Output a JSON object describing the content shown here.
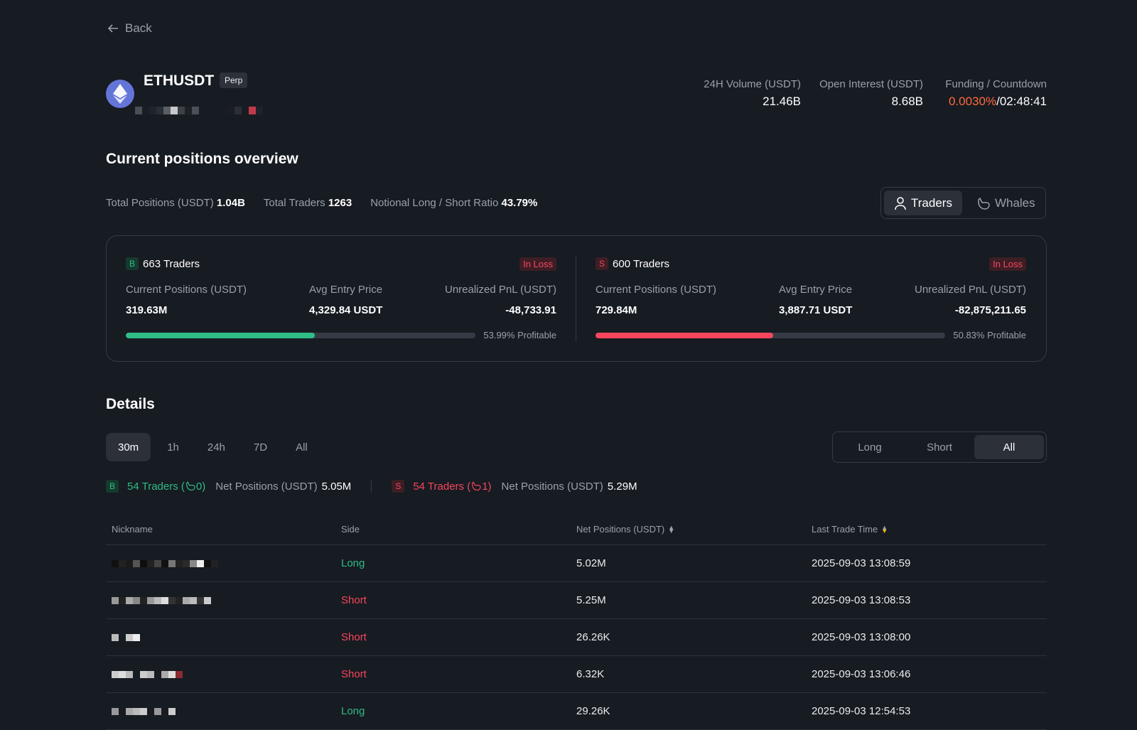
{
  "nav": {
    "back_label": "Back"
  },
  "header": {
    "symbol": "ETHUSDT",
    "badge": "Perp",
    "coin_icon": "ethereum-icon",
    "stats": [
      {
        "label": "24H Volume (USDT)",
        "value": "21.46B"
      },
      {
        "label": "Open Interest (USDT)",
        "value": "8.68B"
      },
      {
        "label": "Funding / Countdown",
        "funding": "0.0030%",
        "sep": "/",
        "countdown": "02:48:41"
      }
    ]
  },
  "overview": {
    "title": "Current positions overview",
    "summary": [
      {
        "label": "Total Positions (USDT)",
        "value": "1.04B"
      },
      {
        "label": "Total Traders",
        "value": "1263"
      },
      {
        "label": "Notional Long / Short Ratio",
        "value": "43.79%"
      }
    ],
    "toggle": [
      {
        "label": "Traders",
        "icon": "person-icon",
        "active": true
      },
      {
        "label": "Whales",
        "icon": "whale-icon",
        "active": false
      }
    ],
    "long": {
      "badge": "B",
      "traders": "663 Traders",
      "status": "In Loss",
      "cols": [
        {
          "label": "Current Positions (USDT)",
          "value": "319.63M"
        },
        {
          "label": "Avg Entry Price",
          "value": "4,329.84 USDT"
        },
        {
          "label": "Unrealized PnL (USDT)",
          "value": "-48,733.91"
        }
      ],
      "profitable_pct": 53.99,
      "profitable_text": "53.99% Profitable",
      "color": "#2ebd85"
    },
    "short": {
      "badge": "S",
      "traders": "600 Traders",
      "status": "In Loss",
      "cols": [
        {
          "label": "Current Positions (USDT)",
          "value": "729.84M"
        },
        {
          "label": "Avg Entry Price",
          "value": "3,887.71 USDT"
        },
        {
          "label": "Unrealized PnL (USDT)",
          "value": "-82,875,211.65"
        }
      ],
      "profitable_pct": 50.83,
      "profitable_text": "50.83% Profitable",
      "color": "#f6465d"
    }
  },
  "details": {
    "title": "Details",
    "time_tabs": [
      "30m",
      "1h",
      "24h",
      "7D",
      "All"
    ],
    "active_time_tab": "30m",
    "side_tabs": [
      "Long",
      "Short",
      "All"
    ],
    "active_side_tab": "All",
    "net": {
      "long": {
        "badge": "B",
        "traders": "54 Traders (",
        "whales": "0",
        "close": ")",
        "net_label": "Net Positions (USDT)",
        "net_value": "5.05M"
      },
      "short": {
        "badge": "S",
        "traders": "54 Traders (",
        "whales": "1",
        "close": ")",
        "net_label": "Net Positions (USDT)",
        "net_value": "5.29M"
      }
    },
    "table": {
      "headers": [
        "Nickname",
        "Side",
        "Net Positions (USDT)",
        "Last Trade Time"
      ],
      "rows": [
        {
          "side": "Long",
          "net": "5.02M",
          "time": "2025-09-03 13:08:59"
        },
        {
          "side": "Short",
          "net": "5.25M",
          "time": "2025-09-03 13:08:53"
        },
        {
          "side": "Short",
          "net": "26.26K",
          "time": "2025-09-03 13:08:00"
        },
        {
          "side": "Short",
          "net": "6.32K",
          "time": "2025-09-03 13:06:46"
        },
        {
          "side": "Long",
          "net": "29.26K",
          "time": "2025-09-03 12:54:53"
        }
      ]
    }
  }
}
